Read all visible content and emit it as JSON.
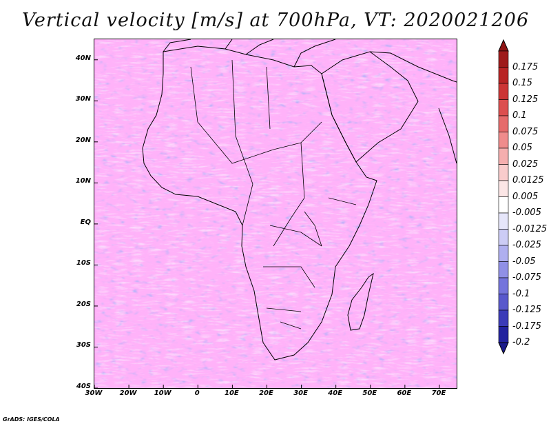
{
  "title": "Vertical velocity [m/s] at 700hPa, VT: 2020021206",
  "credit": "GrADS: IGES/COLA",
  "map": {
    "lon_range": [
      -30,
      75
    ],
    "lat_range": [
      -40,
      45
    ],
    "lat_ticks": [
      {
        "value": 40,
        "label": "40N"
      },
      {
        "value": 30,
        "label": "30N"
      },
      {
        "value": 20,
        "label": "20N"
      },
      {
        "value": 10,
        "label": "10N"
      },
      {
        "value": 0,
        "label": "EQ"
      },
      {
        "value": -10,
        "label": "10S"
      },
      {
        "value": -20,
        "label": "20S"
      },
      {
        "value": -30,
        "label": "30S"
      },
      {
        "value": -40,
        "label": "40S"
      }
    ],
    "lon_ticks": [
      {
        "value": -30,
        "label": "30W"
      },
      {
        "value": -20,
        "label": "20W"
      },
      {
        "value": -10,
        "label": "10W"
      },
      {
        "value": 0,
        "label": "0"
      },
      {
        "value": 10,
        "label": "10E"
      },
      {
        "value": 20,
        "label": "20E"
      },
      {
        "value": 30,
        "label": "30E"
      },
      {
        "value": 40,
        "label": "40E"
      },
      {
        "value": 50,
        "label": "50E"
      },
      {
        "value": 60,
        "label": "60E"
      },
      {
        "value": 70,
        "label": "70E"
      }
    ]
  },
  "colorbar": {
    "levels": [
      {
        "label": "0.175",
        "color": "#9e1a1a"
      },
      {
        "label": "0.15",
        "color": "#b82424"
      },
      {
        "label": "0.125",
        "color": "#cc3535"
      },
      {
        "label": "0.1",
        "color": "#dc4f4f"
      },
      {
        "label": "0.075",
        "color": "#e66b6b"
      },
      {
        "label": "0.05",
        "color": "#ef8c8c"
      },
      {
        "label": "0.025",
        "color": "#f5aeae"
      },
      {
        "label": "0.0125",
        "color": "#f9cccc"
      },
      {
        "label": "0.005",
        "color": "#fce6e6"
      },
      {
        "label": "-0.005",
        "color": "#ffffff"
      },
      {
        "label": "-0.0125",
        "color": "#e6e6fa"
      },
      {
        "label": "-0.025",
        "color": "#ccccf5"
      },
      {
        "label": "-0.05",
        "color": "#afafef"
      },
      {
        "label": "-0.075",
        "color": "#9090e6"
      },
      {
        "label": "-0.1",
        "color": "#7474dc"
      },
      {
        "label": "-0.125",
        "color": "#5858cc"
      },
      {
        "label": "-0.175",
        "color": "#3b3bb8"
      },
      {
        "label": "-0.2",
        "color": "#22229e"
      }
    ],
    "top_color": "#8f1414",
    "bottom_color": "#1a1a8a"
  }
}
